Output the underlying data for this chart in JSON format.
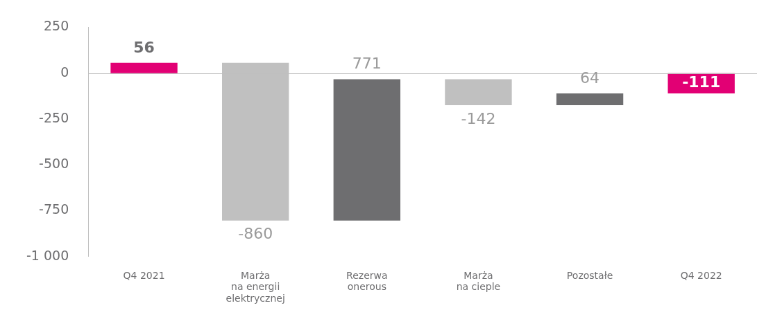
{
  "chart_data": {
    "type": "bar",
    "categories": [
      "Q4 2021",
      "Marża\nna energii\nelektrycznej",
      "Rezerwa\nonerous",
      "Marża\nna cieple",
      "Pozostałe",
      "Q4 2022"
    ],
    "values": [
      56,
      -860,
      771,
      -142,
      64,
      -111
    ],
    "base": [
      0,
      56,
      -804,
      -33,
      -175,
      0
    ],
    "colors": [
      "#e20074",
      "#c0c0c0",
      "#6e6e70",
      "#c0c0c0",
      "#6e6e70",
      "#e20074"
    ],
    "value_labels": [
      "56",
      "-860",
      "771",
      "-142",
      "64",
      "-111"
    ],
    "ylim": [
      -1000,
      250
    ],
    "yticks": [
      250,
      0,
      -250,
      -500,
      -750,
      {
        "value": -1000,
        "label": "-1 000"
      }
    ],
    "ref_lines": [
      {
        "axis": "y",
        "value": 0,
        "color": "#bfbfbf"
      }
    ],
    "grid": false,
    "legend": false
  }
}
